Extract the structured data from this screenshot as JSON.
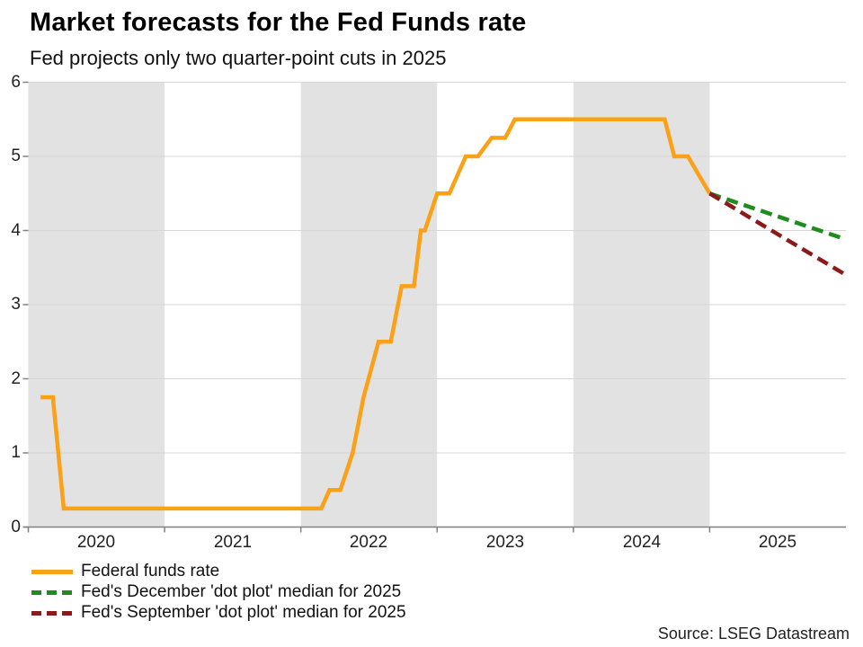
{
  "header": {
    "title": "Market forecasts for the Fed Funds rate",
    "subtitle": "Fed projects only two quarter-point cuts in 2025"
  },
  "footer": {
    "source": "Source: LSEG Datastream"
  },
  "legend": {
    "items": [
      {
        "label": "Federal funds rate",
        "style": "solid"
      },
      {
        "label": "Fed's December 'dot plot' median for 2025",
        "style": "dashed"
      },
      {
        "label": "Fed's September 'dot plot' median for 2025",
        "style": "dashed"
      }
    ]
  },
  "chart_data": {
    "type": "line",
    "title": "Market forecasts for the Fed Funds rate",
    "subtitle": "Fed projects only two quarter-point cuts in 2025",
    "source": "Source: LSEG Datastream",
    "xlabel": "",
    "ylabel": "",
    "ylim": [
      0,
      6
    ],
    "xlim": [
      2020,
      2026
    ],
    "ytick_labels": [
      "6",
      "5",
      "4",
      "3",
      "2",
      "1",
      "0"
    ],
    "xtick_labels": [
      "2020",
      "2021",
      "2022",
      "2023",
      "2024",
      "2025"
    ],
    "grid": "horizontal",
    "legend_position": "bottom-left",
    "shaded_years": [
      2020,
      2022,
      2024
    ],
    "band_color": "#e2e2e2",
    "grid_color": "#d7d7d7",
    "axis_color": "#808080",
    "series": [
      {
        "name": "Federal funds rate",
        "type": "line",
        "style": "solid",
        "color": "#FBA117",
        "points": [
          [
            2020.09,
            1.75
          ],
          [
            2020.18,
            1.75
          ],
          [
            2020.26,
            0.25
          ],
          [
            2022.15,
            0.25
          ],
          [
            2022.21,
            0.5
          ],
          [
            2022.29,
            0.5
          ],
          [
            2022.38,
            1.0
          ],
          [
            2022.46,
            1.75
          ],
          [
            2022.57,
            2.5
          ],
          [
            2022.66,
            2.5
          ],
          [
            2022.74,
            3.25
          ],
          [
            2022.83,
            3.25
          ],
          [
            2022.88,
            4.0
          ],
          [
            2022.91,
            4.0
          ],
          [
            2023.0,
            4.5
          ],
          [
            2023.09,
            4.5
          ],
          [
            2023.21,
            5.0
          ],
          [
            2023.3,
            5.0
          ],
          [
            2023.4,
            5.25
          ],
          [
            2023.5,
            5.25
          ],
          [
            2023.57,
            5.5
          ],
          [
            2024.67,
            5.5
          ],
          [
            2024.74,
            5.0
          ],
          [
            2024.84,
            5.0
          ],
          [
            2025.0,
            4.5
          ]
        ]
      },
      {
        "name": "Fed's December 'dot plot' median for 2025",
        "type": "line",
        "style": "dashed",
        "color": "#1E8C1E",
        "points": [
          [
            2025.0,
            4.5
          ],
          [
            2025.97,
            3.9
          ]
        ]
      },
      {
        "name": "Fed's September 'dot plot' median for 2025",
        "type": "line",
        "style": "dashed",
        "color": "#8B1A1A",
        "points": [
          [
            2025.0,
            4.5
          ],
          [
            2026.0,
            3.4
          ]
        ]
      }
    ]
  }
}
